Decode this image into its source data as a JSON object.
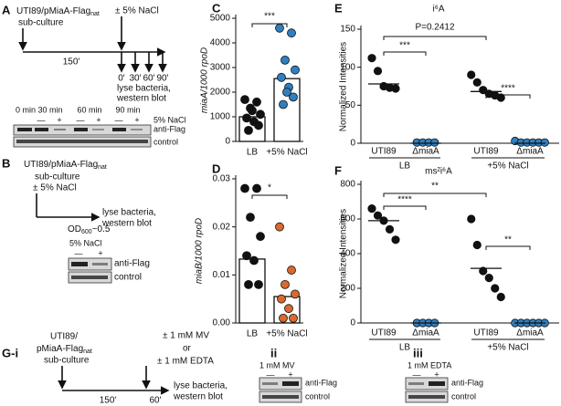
{
  "panels": {
    "A": {
      "label": "A",
      "strain": "UTI89/pMiaA-Flag",
      "strain_sub": "nat",
      "step": "sub-culture",
      "treatment": "± 5% NaCl",
      "duration": "150'",
      "timepoints": [
        "0'",
        "30'",
        "60'",
        "90'"
      ],
      "end_steps": [
        "lyse bacteria,",
        "western blot"
      ],
      "blot": {
        "lanes": [
          "0 min",
          "30 min",
          "60 min",
          "90 min"
        ],
        "signs": [
          "—",
          "+",
          "—",
          "+",
          "—",
          "+"
        ],
        "condition": "5% NaCl",
        "rows": [
          "anti-Flag",
          "control"
        ]
      }
    },
    "B": {
      "label": "B",
      "strain": "UTI89/pMiaA-Flag",
      "strain_sub": "nat",
      "steps": [
        "sub-culture",
        "± 5% NaCl"
      ],
      "end_steps": [
        "lyse bacteria,",
        "western blot"
      ],
      "harvest": {
        "od": "OD",
        "od_sub": "600",
        "od_value": "~0.5"
      },
      "blot": {
        "condition": "5% NaCl",
        "signs": [
          "—",
          "+"
        ],
        "rows": [
          "anti-Flag",
          "control"
        ]
      }
    },
    "G": {
      "label": "G-i",
      "strain": [
        "UTI89/",
        "pMiaA-Flag"
      ],
      "strain_sub": "nat",
      "step": "sub-culture",
      "treatments": [
        "± 1 mM MV",
        "or",
        "± 1 mM EDTA"
      ],
      "durations": [
        "150'",
        "60'"
      ],
      "end_steps": [
        "lyse bacteria,",
        "western blot"
      ],
      "blots": [
        {
          "label": "ii",
          "condition": "1 mM MV",
          "signs": [
            "—",
            "+"
          ],
          "rows": [
            "anti-Flag",
            "control"
          ]
        },
        {
          "label": "iii",
          "condition": "1 mM EDTA",
          "signs": [
            "—",
            "+"
          ],
          "rows": [
            "anti-Flag",
            "control"
          ]
        }
      ]
    }
  },
  "chart_data": [
    {
      "type": "bar-dot",
      "panel": "C",
      "y_label": "miaA/1000 rpoD",
      "categories": [
        "LB",
        "+5% NaCl"
      ],
      "values": [
        1000,
        2550
      ],
      "points": [
        [
          1700,
          1600,
          1350,
          1100,
          950,
          800,
          650,
          450,
          1250
        ],
        [
          4600,
          4400,
          3300,
          2900,
          2600,
          2200,
          1800,
          1500,
          2000
        ]
      ],
      "point_colors": [
        "#111111",
        "#2f7fc1"
      ],
      "ylim": [
        0,
        5000
      ],
      "yticks": [
        0,
        1000,
        2000,
        3000,
        4000,
        5000
      ],
      "annotations": [
        "***"
      ]
    },
    {
      "type": "bar-dot",
      "panel": "D",
      "y_label": "miaB/1000 rpoD",
      "categories": [
        "LB",
        "+5% NaCl"
      ],
      "values": [
        0.0133,
        0.0055
      ],
      "points": [
        [
          0.028,
          0.028,
          0.022,
          0.018,
          0.014,
          0.013,
          0.008,
          0.008
        ],
        [
          0.02,
          0.011,
          0.008,
          0.006,
          0.005,
          0.003,
          0.001,
          0.001
        ]
      ],
      "point_colors": [
        "#111111",
        "#d9692e"
      ],
      "ylim": [
        0,
        0.03
      ],
      "yticks": [
        {
          "value": 0,
          "label": "0.00"
        },
        0.01,
        0.02,
        0.03
      ],
      "annotations": [
        "*"
      ]
    },
    {
      "type": "dot-median",
      "panel": "E",
      "title": "i⁶A",
      "y_label": "Normalized Intensities",
      "categories": [
        "UTI89",
        "ΔmiaA",
        "UTI89",
        "ΔmiaA"
      ],
      "groups": [
        "LB",
        "+5% NaCl"
      ],
      "values": [
        78,
        0,
        68,
        0
      ],
      "points": [
        [
          112,
          95,
          75,
          73,
          72
        ],
        [
          1,
          1,
          1,
          1
        ],
        [
          90,
          80,
          70,
          65,
          63,
          60
        ],
        [
          3,
          1,
          1,
          1,
          1,
          1
        ]
      ],
      "point_colors": [
        "#111111",
        "#2f7fc1",
        "#111111",
        "#2f7fc1"
      ],
      "ylim": [
        0,
        150
      ],
      "yticks": [
        0,
        50,
        100,
        150
      ],
      "annotations": [
        "P=0.2412",
        "***",
        "****"
      ]
    },
    {
      "type": "dot-median",
      "panel": "F",
      "title": "ms²i⁶A",
      "y_label": "Normalized Intensities",
      "categories": [
        "UTI89",
        "ΔmiaA",
        "UTI89",
        "ΔmiaA"
      ],
      "groups": [
        "LB",
        "+5% NaCl"
      ],
      "values": [
        590,
        0,
        315,
        0
      ],
      "points": [
        [
          660,
          620,
          590,
          540,
          480
        ],
        [
          0,
          0,
          0,
          0
        ],
        [
          600,
          450,
          300,
          260,
          200,
          150
        ],
        [
          0,
          0,
          0,
          0,
          0,
          0
        ]
      ],
      "point_colors": [
        "#111111",
        "#2f7fc1",
        "#111111",
        "#2f7fc1"
      ],
      "ylim": [
        0,
        800
      ],
      "yticks": [
        0,
        200,
        400,
        600,
        800
      ],
      "annotations": [
        "****",
        "**",
        "**"
      ]
    }
  ]
}
